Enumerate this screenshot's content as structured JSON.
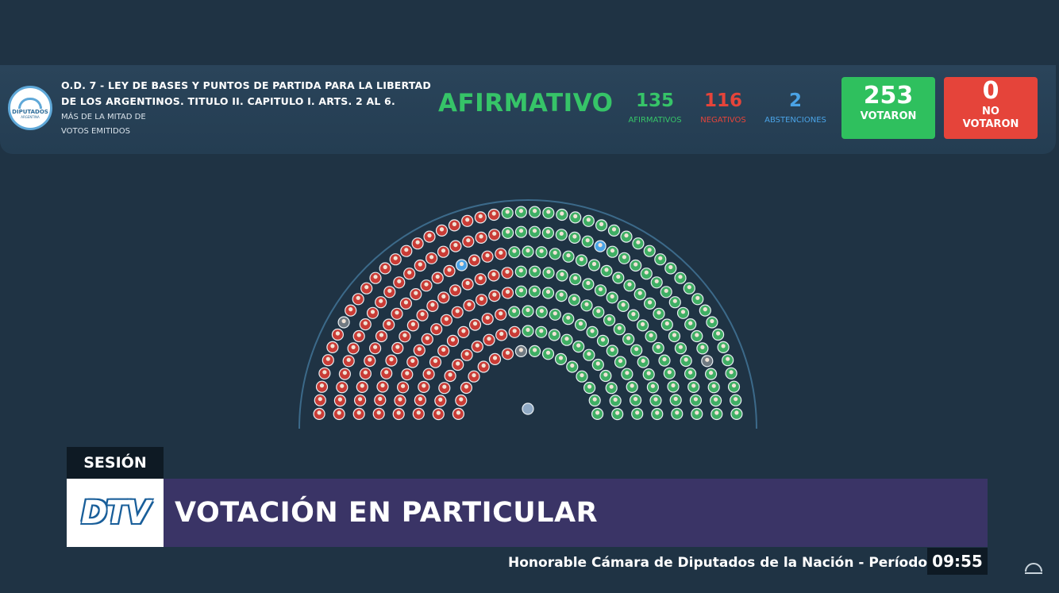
{
  "header": {
    "title": "O.D. 7 - LEY DE BASES Y PUNTOS DE PARTIDA PARA LA LIBERTAD DE LOS ARGENTINOS. TITULO II. CAPITULO I. ARTS. 2 AL 6.",
    "subtitle_line1": "MÁS DE LA MITAD DE",
    "subtitle_line2": "VOTOS EMITIDOS",
    "logo_text": "DIPUTADOS",
    "logo_sub": "ARGENTINA",
    "result": "AFIRMATIVO",
    "afirmativos": {
      "value": "135",
      "label": "AFIRMATIVOS"
    },
    "negativos": {
      "value": "116",
      "label": "NEGATIVOS"
    },
    "abstenciones": {
      "value": "2",
      "label": "ABSTENCIONES"
    },
    "votaron": {
      "value": "253",
      "label": "VOTARON"
    },
    "no_votaron": {
      "value": "0",
      "label_line1": "NO",
      "label_line2": "VOTARON"
    }
  },
  "colors": {
    "background": "#1f3344",
    "afirmativo": "#36c468",
    "negativo": "#e5443a",
    "abstencion": "#4aa3e6",
    "seat_green": "#3fae64",
    "seat_red": "#c93c36",
    "seat_gray": "#707a82",
    "banner_purple": "#3a3466"
  },
  "chamber": {
    "seats": {
      "afirmativo": 135,
      "negativo": 116,
      "abstencion": 2,
      "ausente": 4
    }
  },
  "lower_third": {
    "tag": "SESIÓN",
    "logo": "DTV",
    "headline": "VOTACIÓN EN PARTICULAR",
    "ticker": "Honorable Cámara de Diputados de la Nación - Período",
    "time": "09:55"
  }
}
